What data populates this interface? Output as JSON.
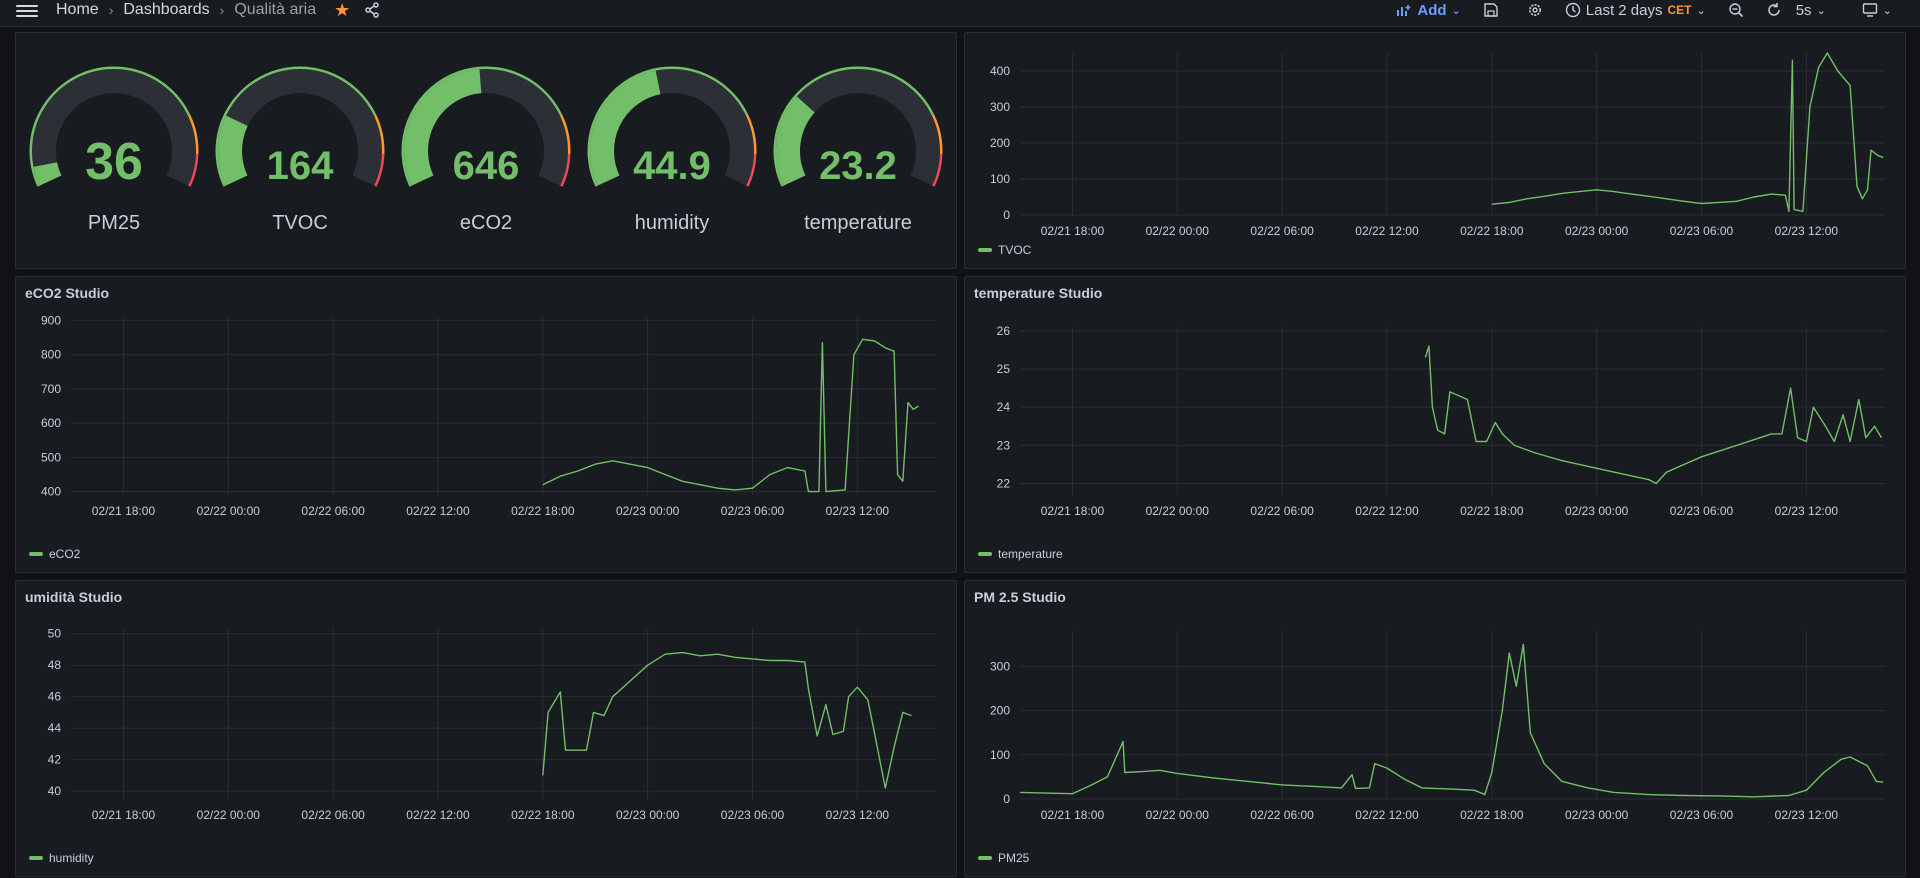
{
  "topbar": {
    "breadcrumb": [
      "Home",
      "Dashboards",
      "Qualità aria"
    ],
    "add_label": "Add",
    "time_range": "Last 2 days",
    "timezone": "CET",
    "refresh": "5s"
  },
  "colors": {
    "line": "#73bf69",
    "warn": "#ff9830",
    "crit": "#f2495c",
    "track": "#2c2f36"
  },
  "gauges": [
    {
      "label": "PM25",
      "value": "36",
      "fraction": 0.06
    },
    {
      "label": "TVOC",
      "value": "164",
      "fraction": 0.22
    },
    {
      "label": "eCO2",
      "value": "646",
      "fraction": 0.48
    },
    {
      "label": "humidity",
      "value": "44.9",
      "fraction": 0.45
    },
    {
      "label": "temperature",
      "value": "23.2",
      "fraction": 0.29
    }
  ],
  "panels": {
    "tvoc": {
      "title": "",
      "legend": "TVOC"
    },
    "eco2": {
      "title": "eCO2 Studio",
      "legend": "eCO2"
    },
    "temp": {
      "title": "temperature Studio",
      "legend": "temperature"
    },
    "hum": {
      "title": "umidità Studio",
      "legend": "humidity"
    },
    "pm": {
      "title": "PM 2.5 Studio",
      "legend": "PM25"
    }
  },
  "chart_data": [
    {
      "type": "line",
      "id": "tvoc",
      "series": [
        {
          "name": "TVOC"
        }
      ],
      "x_ticks": [
        "02/21 18:00",
        "02/22 00:00",
        "02/22 06:00",
        "02/22 12:00",
        "02/22 18:00",
        "02/23 00:00",
        "02/23 06:00",
        "02/23 12:00"
      ],
      "x_range_hours": [
        -3,
        46.5
      ],
      "y_ticks": [
        0,
        100,
        200,
        300,
        400
      ],
      "ylim": [
        0,
        450
      ],
      "points": [
        [
          24,
          30
        ],
        [
          25,
          35
        ],
        [
          26,
          45
        ],
        [
          27,
          52
        ],
        [
          28,
          60
        ],
        [
          29,
          65
        ],
        [
          30,
          70
        ],
        [
          31,
          65
        ],
        [
          32,
          58
        ],
        [
          33,
          52
        ],
        [
          34,
          45
        ],
        [
          35,
          38
        ],
        [
          36,
          32
        ],
        [
          37,
          35
        ],
        [
          38,
          38
        ],
        [
          39,
          50
        ],
        [
          40,
          58
        ],
        [
          40.8,
          55
        ],
        [
          41,
          10
        ],
        [
          41.2,
          430
        ],
        [
          41.3,
          15
        ],
        [
          41.8,
          10
        ],
        [
          42.2,
          300
        ],
        [
          42.7,
          410
        ],
        [
          43.2,
          450
        ],
        [
          43.8,
          400
        ],
        [
          44.5,
          360
        ],
        [
          44.9,
          80
        ],
        [
          45.2,
          45
        ],
        [
          45.5,
          70
        ],
        [
          45.7,
          180
        ],
        [
          46.1,
          165
        ],
        [
          46.4,
          160
        ]
      ]
    },
    {
      "type": "line",
      "id": "eco2",
      "series": [
        {
          "name": "eCO2"
        }
      ],
      "x_ticks": [
        "02/21 18:00",
        "02/22 00:00",
        "02/22 06:00",
        "02/22 12:00",
        "02/22 18:00",
        "02/23 00:00",
        "02/23 06:00",
        "02/23 12:00"
      ],
      "x_range_hours": [
        -3,
        46.5
      ],
      "y_ticks": [
        400,
        500,
        600,
        700,
        800,
        900
      ],
      "ylim": [
        390,
        910
      ],
      "points": [
        [
          24,
          420
        ],
        [
          25,
          445
        ],
        [
          26,
          460
        ],
        [
          27,
          480
        ],
        [
          28,
          490
        ],
        [
          29,
          480
        ],
        [
          30,
          470
        ],
        [
          31,
          450
        ],
        [
          32,
          430
        ],
        [
          33,
          420
        ],
        [
          34,
          410
        ],
        [
          35,
          405
        ],
        [
          36,
          410
        ],
        [
          37,
          450
        ],
        [
          38,
          470
        ],
        [
          39,
          460
        ],
        [
          39.2,
          400
        ],
        [
          39.8,
          400
        ],
        [
          40,
          835
        ],
        [
          40.2,
          400
        ],
        [
          41.3,
          405
        ],
        [
          41.8,
          800
        ],
        [
          42.3,
          845
        ],
        [
          43,
          840
        ],
        [
          43.6,
          820
        ],
        [
          44.1,
          810
        ],
        [
          44.3,
          450
        ],
        [
          44.6,
          430
        ],
        [
          44.9,
          660
        ],
        [
          45.2,
          640
        ],
        [
          45.5,
          650
        ]
      ]
    },
    {
      "type": "line",
      "id": "temp",
      "series": [
        {
          "name": "temperature"
        }
      ],
      "x_ticks": [
        "02/21 18:00",
        "02/22 00:00",
        "02/22 06:00",
        "02/22 12:00",
        "02/22 18:00",
        "02/23 00:00",
        "02/23 06:00",
        "02/23 12:00"
      ],
      "x_range_hours": [
        -3,
        46.5
      ],
      "y_ticks": [
        22,
        23,
        24,
        25,
        26
      ],
      "ylim": [
        21.7,
        26.1
      ],
      "points": [
        [
          20.2,
          25.3
        ],
        [
          20.4,
          25.6
        ],
        [
          20.6,
          24.0
        ],
        [
          20.9,
          23.4
        ],
        [
          21.3,
          23.3
        ],
        [
          21.6,
          24.4
        ],
        [
          22.6,
          24.2
        ],
        [
          23.1,
          23.1
        ],
        [
          23.7,
          23.1
        ],
        [
          24.2,
          23.6
        ],
        [
          24.6,
          23.3
        ],
        [
          25.3,
          23.0
        ],
        [
          26.5,
          22.8
        ],
        [
          28,
          22.6
        ],
        [
          30,
          22.4
        ],
        [
          32,
          22.2
        ],
        [
          33,
          22.1
        ],
        [
          33.4,
          22.0
        ],
        [
          34,
          22.3
        ],
        [
          36,
          22.7
        ],
        [
          38,
          23.0
        ],
        [
          40,
          23.3
        ],
        [
          40.6,
          23.3
        ],
        [
          41.1,
          24.5
        ],
        [
          41.5,
          23.2
        ],
        [
          42,
          23.1
        ],
        [
          42.4,
          24.0
        ],
        [
          43.1,
          23.5
        ],
        [
          43.6,
          23.1
        ],
        [
          44.1,
          23.8
        ],
        [
          44.5,
          23.1
        ],
        [
          45,
          24.2
        ],
        [
          45.4,
          23.2
        ],
        [
          45.9,
          23.5
        ],
        [
          46.3,
          23.2
        ]
      ]
    },
    {
      "type": "line",
      "id": "hum",
      "series": [
        {
          "name": "humidity"
        }
      ],
      "x_ticks": [
        "02/21 18:00",
        "02/22 00:00",
        "02/22 06:00",
        "02/22 12:00",
        "02/22 18:00",
        "02/23 00:00",
        "02/23 06:00",
        "02/23 12:00"
      ],
      "x_range_hours": [
        -3,
        46.5
      ],
      "y_ticks": [
        40,
        42,
        44,
        46,
        48,
        50
      ],
      "ylim": [
        39.5,
        50.3
      ],
      "points": [
        [
          24,
          41
        ],
        [
          24.3,
          45
        ],
        [
          25,
          46.3
        ],
        [
          25.3,
          42.6
        ],
        [
          26.5,
          42.6
        ],
        [
          26.9,
          45
        ],
        [
          27.5,
          44.8
        ],
        [
          28,
          46
        ],
        [
          29,
          47
        ],
        [
          30,
          48
        ],
        [
          31,
          48.7
        ],
        [
          32,
          48.8
        ],
        [
          33,
          48.6
        ],
        [
          34,
          48.7
        ],
        [
          35,
          48.5
        ],
        [
          36,
          48.4
        ],
        [
          37,
          48.3
        ],
        [
          38,
          48.3
        ],
        [
          39,
          48.2
        ],
        [
          39.2,
          46.5
        ],
        [
          39.7,
          43.5
        ],
        [
          40.2,
          45.5
        ],
        [
          40.6,
          43.6
        ],
        [
          41.2,
          43.8
        ],
        [
          41.5,
          46
        ],
        [
          42,
          46.6
        ],
        [
          42.6,
          45.8
        ],
        [
          43,
          43.6
        ],
        [
          43.6,
          40.2
        ],
        [
          44.1,
          42.8
        ],
        [
          44.6,
          45
        ],
        [
          45.1,
          44.8
        ]
      ]
    },
    {
      "type": "line",
      "id": "pm",
      "series": [
        {
          "name": "PM25"
        }
      ],
      "x_ticks": [
        "02/21 18:00",
        "02/22 00:00",
        "02/22 06:00",
        "02/22 12:00",
        "02/22 18:00",
        "02/23 00:00",
        "02/23 06:00",
        "02/23 12:00"
      ],
      "x_range_hours": [
        -3,
        46.5
      ],
      "y_ticks": [
        0,
        100,
        200,
        300
      ],
      "ylim": [
        0,
        380
      ],
      "points": [
        [
          -3,
          15
        ],
        [
          0,
          12
        ],
        [
          1,
          30
        ],
        [
          2,
          50
        ],
        [
          2.9,
          130
        ],
        [
          3,
          60
        ],
        [
          4,
          62
        ],
        [
          5,
          65
        ],
        [
          6,
          58
        ],
        [
          8,
          48
        ],
        [
          10,
          40
        ],
        [
          12,
          32
        ],
        [
          14,
          28
        ],
        [
          15.4,
          25
        ],
        [
          16,
          55
        ],
        [
          16.2,
          24
        ],
        [
          17,
          25
        ],
        [
          17.3,
          80
        ],
        [
          18,
          70
        ],
        [
          19,
          45
        ],
        [
          20,
          25
        ],
        [
          22,
          22
        ],
        [
          23,
          20
        ],
        [
          23.6,
          10
        ],
        [
          24,
          60
        ],
        [
          24.6,
          200
        ],
        [
          25,
          330
        ],
        [
          25.4,
          255
        ],
        [
          25.8,
          350
        ],
        [
          26.2,
          150
        ],
        [
          27,
          80
        ],
        [
          28,
          40
        ],
        [
          29.5,
          25
        ],
        [
          31,
          15
        ],
        [
          33,
          10
        ],
        [
          35,
          8
        ],
        [
          37,
          7
        ],
        [
          39,
          5
        ],
        [
          41,
          8
        ],
        [
          42,
          20
        ],
        [
          43,
          60
        ],
        [
          44,
          90
        ],
        [
          44.5,
          95
        ],
        [
          45,
          85
        ],
        [
          45.5,
          75
        ],
        [
          46,
          40
        ],
        [
          46.4,
          38
        ]
      ]
    }
  ]
}
